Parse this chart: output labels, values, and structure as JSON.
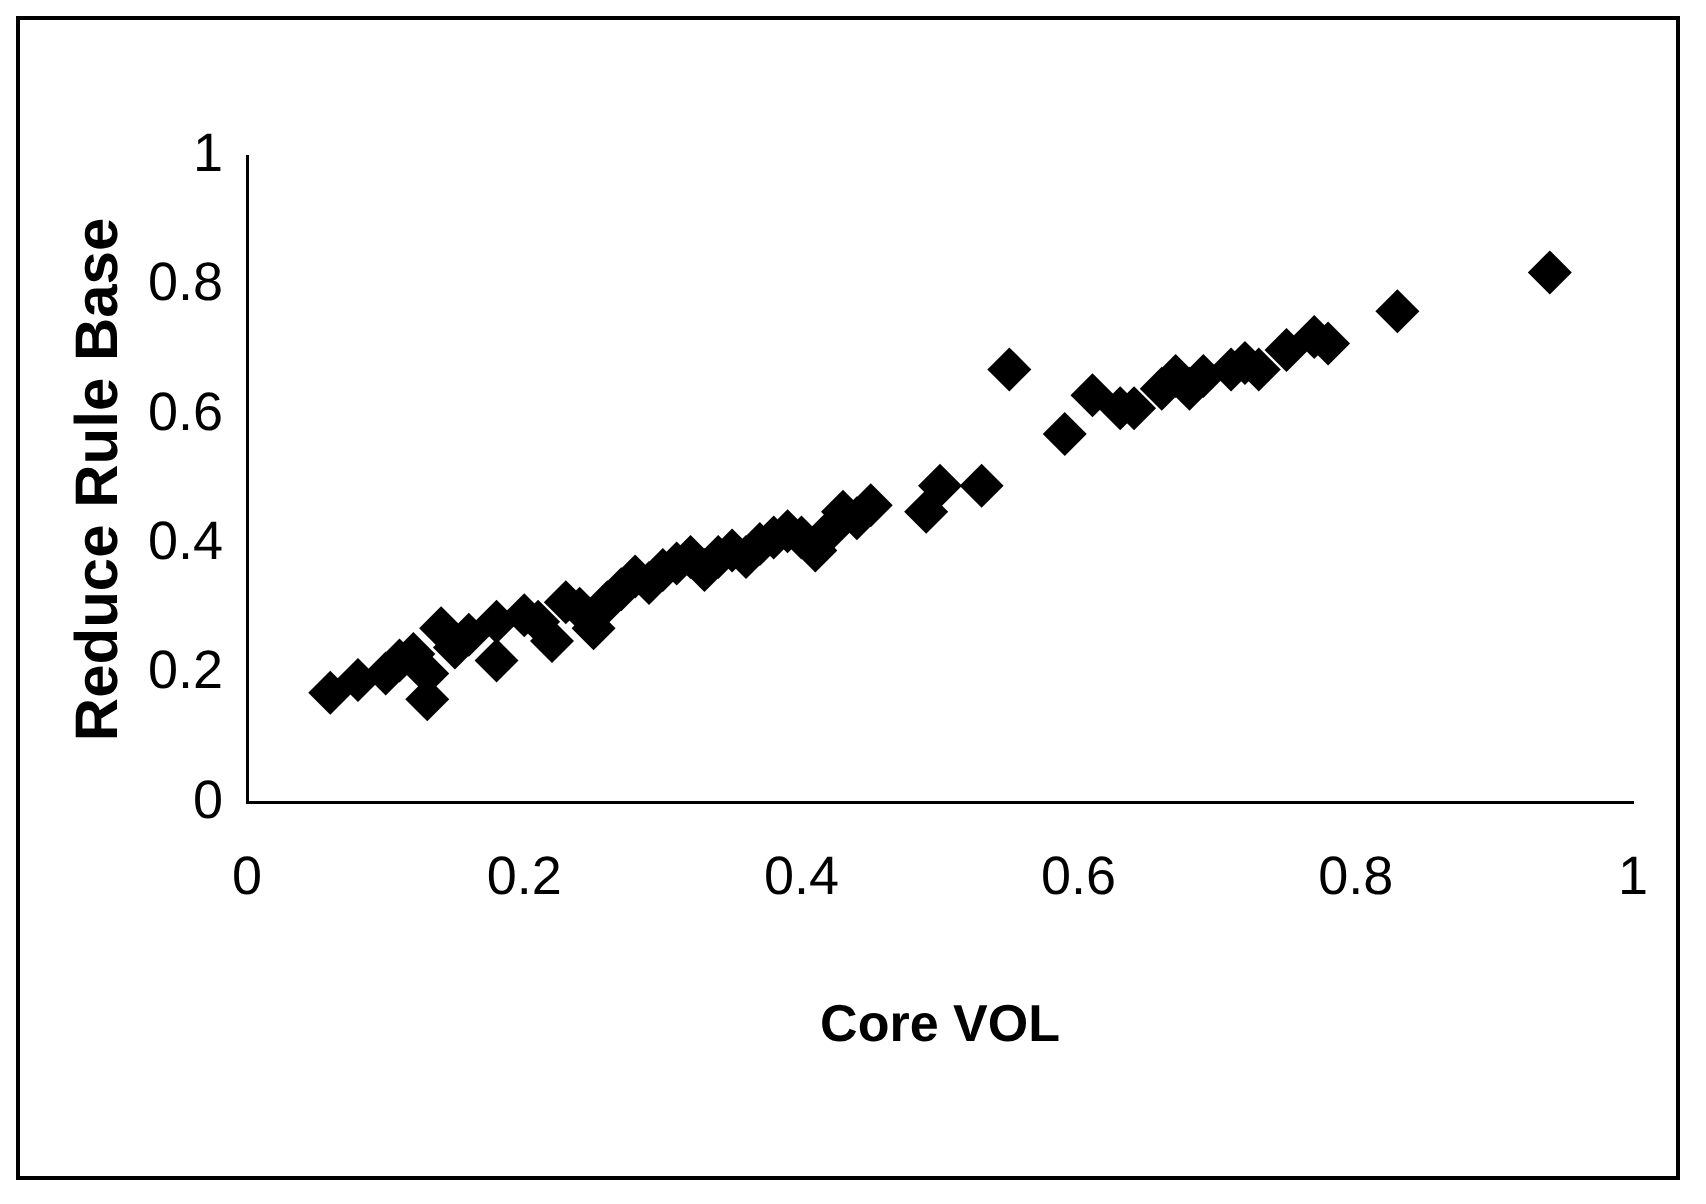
{
  "chart_data": {
    "type": "scatter",
    "xlabel": "Core VOL",
    "ylabel": "Reduce Rule Base",
    "xlim": [
      0,
      1
    ],
    "ylim": [
      0,
      1
    ],
    "xticks": [
      0,
      0.2,
      0.4,
      0.6,
      0.8,
      1
    ],
    "yticks": [
      0,
      0.2,
      0.4,
      0.6,
      0.8,
      1
    ],
    "grid": false,
    "legend": false,
    "marker": "diamond",
    "series": [
      {
        "color": "#000000",
        "x": [
          0.06,
          0.08,
          0.1,
          0.11,
          0.12,
          0.13,
          0.13,
          0.14,
          0.15,
          0.16,
          0.18,
          0.18,
          0.2,
          0.21,
          0.22,
          0.23,
          0.24,
          0.25,
          0.26,
          0.27,
          0.28,
          0.29,
          0.3,
          0.31,
          0.32,
          0.33,
          0.34,
          0.35,
          0.36,
          0.37,
          0.38,
          0.39,
          0.4,
          0.41,
          0.42,
          0.43,
          0.44,
          0.45,
          0.49,
          0.5,
          0.53,
          0.55,
          0.59,
          0.61,
          0.63,
          0.64,
          0.66,
          0.67,
          0.68,
          0.69,
          0.71,
          0.72,
          0.73,
          0.75,
          0.77,
          0.78,
          0.83,
          0.94
        ],
        "values": [
          0.17,
          0.19,
          0.2,
          0.22,
          0.23,
          0.16,
          0.2,
          0.27,
          0.24,
          0.26,
          0.22,
          0.28,
          0.29,
          0.28,
          0.25,
          0.31,
          0.3,
          0.27,
          0.31,
          0.33,
          0.35,
          0.34,
          0.36,
          0.37,
          0.38,
          0.36,
          0.38,
          0.39,
          0.38,
          0.4,
          0.41,
          0.42,
          0.41,
          0.39,
          0.42,
          0.45,
          0.44,
          0.46,
          0.45,
          0.49,
          0.49,
          0.67,
          0.57,
          0.63,
          0.61,
          0.61,
          0.64,
          0.66,
          0.64,
          0.66,
          0.67,
          0.68,
          0.67,
          0.7,
          0.72,
          0.71,
          0.76,
          0.82
        ]
      }
    ]
  }
}
